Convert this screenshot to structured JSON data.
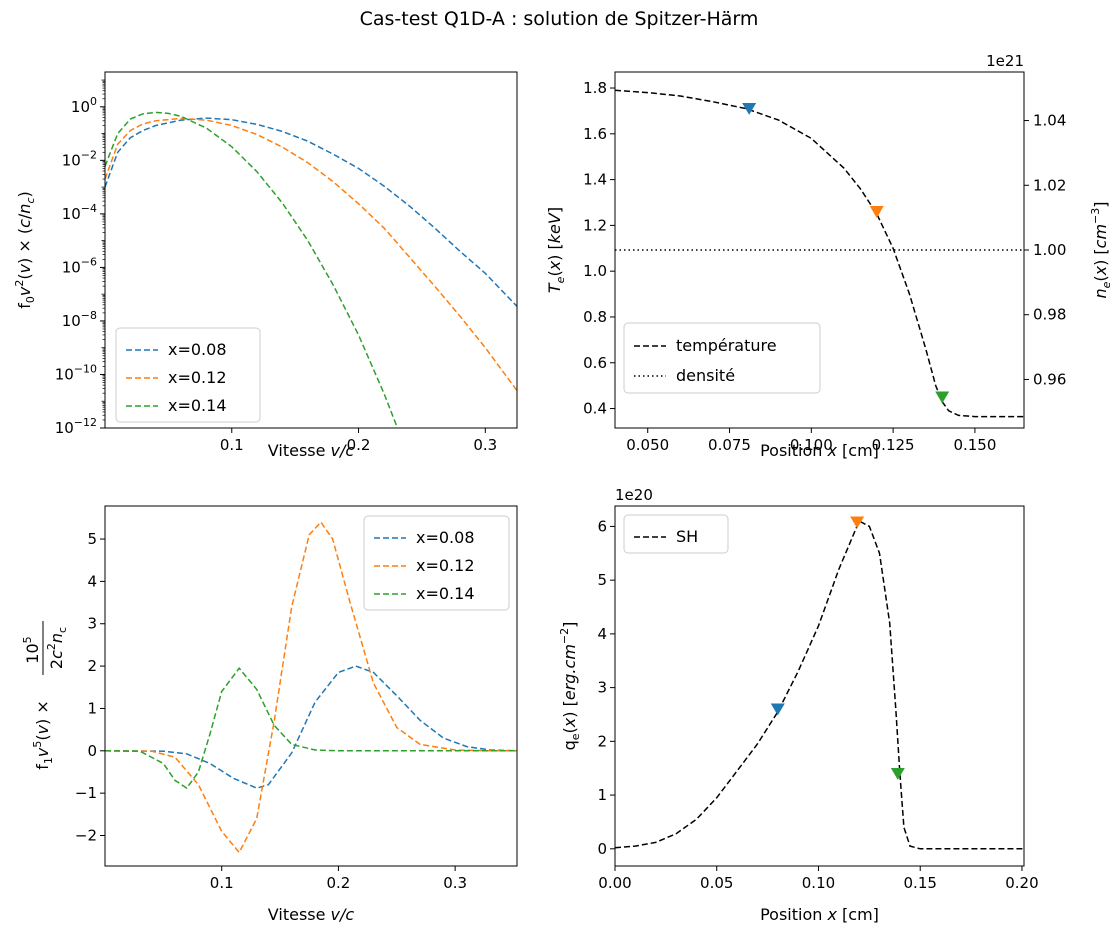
{
  "title": "Cas-test Q1D-A : solution de Spitzer-Härm",
  "colors": {
    "blue": "#1f77b4",
    "orange": "#ff7f0e",
    "green": "#2ca02c",
    "black": "#000000"
  },
  "chart_data": [
    {
      "id": "f0",
      "type": "line",
      "xlabel": "Vitesse v/c",
      "ylabel": "f0 v²(v) × (c/nc)",
      "yscale": "log",
      "xlim": [
        0.0,
        0.325
      ],
      "ylim": [
        1e-12,
        20
      ],
      "xticks": [
        {
          "v": 0.1,
          "label": "0.1"
        },
        {
          "v": 0.2,
          "label": "0.2"
        },
        {
          "v": 0.3,
          "label": "0.3"
        }
      ],
      "yticks": [
        {
          "v": -12,
          "label": "10",
          "exp": "−12"
        },
        {
          "v": -10,
          "label": "10",
          "exp": "−10"
        },
        {
          "v": -8,
          "label": "10",
          "exp": "−8"
        },
        {
          "v": -6,
          "label": "10",
          "exp": "−6"
        },
        {
          "v": -4,
          "label": "10",
          "exp": "−4"
        },
        {
          "v": -2,
          "label": "10",
          "exp": "−2"
        },
        {
          "v": 0,
          "label": "10",
          "exp": "0"
        }
      ],
      "legend": "lower-left",
      "series": [
        {
          "name": "x=0.08",
          "color": "#1f77b4",
          "dash": "dashed",
          "x": [
            0.0,
            0.01,
            0.02,
            0.03,
            0.04,
            0.06,
            0.08,
            0.1,
            0.12,
            0.14,
            0.16,
            0.18,
            0.2,
            0.22,
            0.24,
            0.26,
            0.28,
            0.3,
            0.325
          ],
          "y": [
            0.001,
            0.02,
            0.07,
            0.13,
            0.2,
            0.32,
            0.38,
            0.33,
            0.22,
            0.12,
            0.052,
            0.017,
            0.005,
            0.0011,
            0.0002,
            3e-05,
            4e-06,
            6e-07,
            3.5e-08
          ]
        },
        {
          "name": "x=0.12",
          "color": "#ff7f0e",
          "dash": "dashed",
          "x": [
            0.0,
            0.01,
            0.02,
            0.03,
            0.04,
            0.06,
            0.08,
            0.1,
            0.12,
            0.14,
            0.16,
            0.18,
            0.2,
            0.22,
            0.24,
            0.26,
            0.28,
            0.3,
            0.325
          ],
          "y": [
            0.002,
            0.04,
            0.13,
            0.23,
            0.3,
            0.37,
            0.32,
            0.2,
            0.092,
            0.031,
            0.0082,
            0.0016,
            0.00024,
            3e-05,
            2.5e-06,
            2e-07,
            1.5e-08,
            1e-09,
            2.5e-11
          ]
        },
        {
          "name": "x=0.14",
          "color": "#2ca02c",
          "dash": "dashed",
          "x": [
            0.0,
            0.01,
            0.02,
            0.03,
            0.04,
            0.05,
            0.06,
            0.08,
            0.1,
            0.12,
            0.14,
            0.16,
            0.18,
            0.2,
            0.22,
            0.235
          ],
          "y": [
            0.006,
            0.1,
            0.35,
            0.55,
            0.62,
            0.57,
            0.44,
            0.16,
            0.032,
            0.0037,
            0.00025,
            1e-05,
            2.2e-07,
            3e-09,
            2e-11,
            3e-13
          ]
        }
      ]
    },
    {
      "id": "te",
      "type": "line",
      "xlabel": "Position x [cm]",
      "ylabel": "Te(x) [keV]",
      "ylabel2": "ne(x) [cm⁻³]",
      "offset_label": "1e21",
      "xlim": [
        0.04,
        0.165
      ],
      "ylim": [
        0.315,
        1.87
      ],
      "ylim2": [
        0.945,
        1.055
      ],
      "xticks": [
        {
          "v": 0.05,
          "label": "0.050"
        },
        {
          "v": 0.075,
          "label": "0.075"
        },
        {
          "v": 0.1,
          "label": "0.100"
        },
        {
          "v": 0.125,
          "label": "0.125"
        },
        {
          "v": 0.15,
          "label": "0.150"
        }
      ],
      "yticks": [
        {
          "v": 0.4,
          "label": "0.4"
        },
        {
          "v": 0.6,
          "label": "0.6"
        },
        {
          "v": 0.8,
          "label": "0.8"
        },
        {
          "v": 1.0,
          "label": "1.0"
        },
        {
          "v": 1.2,
          "label": "1.2"
        },
        {
          "v": 1.4,
          "label": "1.4"
        },
        {
          "v": 1.6,
          "label": "1.6"
        },
        {
          "v": 1.8,
          "label": "1.8"
        }
      ],
      "yticks2": [
        {
          "v": 0.96,
          "label": "0.96"
        },
        {
          "v": 0.98,
          "label": "0.98"
        },
        {
          "v": 1.0,
          "label": "1.00"
        },
        {
          "v": 1.02,
          "label": "1.02"
        },
        {
          "v": 1.04,
          "label": "1.04"
        }
      ],
      "legend": "lower-left",
      "series": [
        {
          "name": "température",
          "color": "#000000",
          "dash": "dashed",
          "axis": "left",
          "x": [
            0.04,
            0.05,
            0.06,
            0.07,
            0.08,
            0.09,
            0.1,
            0.11,
            0.115,
            0.12,
            0.125,
            0.13,
            0.135,
            0.138,
            0.14,
            0.142,
            0.145,
            0.15,
            0.155,
            0.16,
            0.165
          ],
          "y": [
            1.79,
            1.78,
            1.765,
            1.74,
            1.71,
            1.66,
            1.58,
            1.45,
            1.36,
            1.25,
            1.1,
            0.9,
            0.66,
            0.5,
            0.43,
            0.39,
            0.37,
            0.365,
            0.365,
            0.365,
            0.365
          ]
        },
        {
          "name": "densité",
          "color": "#000000",
          "dash": "dotted",
          "axis": "right",
          "x": [
            0.04,
            0.165
          ],
          "y": [
            1.0,
            1.0
          ]
        }
      ],
      "markers": [
        {
          "x": 0.081,
          "y": 1.71,
          "color": "#1f77b4"
        },
        {
          "x": 0.12,
          "y": 1.26,
          "color": "#ff7f0e"
        },
        {
          "x": 0.14,
          "y": 0.45,
          "color": "#2ca02c"
        }
      ]
    },
    {
      "id": "f1",
      "type": "line",
      "xlabel": "Vitesse v/c",
      "ylabel": "f1 v⁵(v) × 10⁵/(2c²nc)",
      "xlim": [
        0.0,
        0.353
      ],
      "ylim": [
        -2.72,
        5.78
      ],
      "xticks": [
        {
          "v": 0.1,
          "label": "0.1"
        },
        {
          "v": 0.2,
          "label": "0.2"
        },
        {
          "v": 0.3,
          "label": "0.3"
        }
      ],
      "yticks": [
        {
          "v": -2,
          "label": "−2"
        },
        {
          "v": -1,
          "label": "−1"
        },
        {
          "v": 0,
          "label": "0"
        },
        {
          "v": 1,
          "label": "1"
        },
        {
          "v": 2,
          "label": "2"
        },
        {
          "v": 3,
          "label": "3"
        },
        {
          "v": 4,
          "label": "4"
        },
        {
          "v": 5,
          "label": "5"
        }
      ],
      "legend": "upper-right",
      "series": [
        {
          "name": "x=0.08",
          "color": "#1f77b4",
          "dash": "dashed",
          "x": [
            0.0,
            0.05,
            0.07,
            0.09,
            0.11,
            0.13,
            0.14,
            0.16,
            0.18,
            0.2,
            0.215,
            0.23,
            0.25,
            0.27,
            0.29,
            0.31,
            0.33,
            0.353
          ],
          "y": [
            0,
            -0.01,
            -0.07,
            -0.3,
            -0.65,
            -0.88,
            -0.8,
            -0.05,
            1.15,
            1.85,
            2.0,
            1.85,
            1.3,
            0.72,
            0.3,
            0.1,
            0.02,
            0.0
          ]
        },
        {
          "name": "x=0.12",
          "color": "#ff7f0e",
          "dash": "dashed",
          "x": [
            0.0,
            0.04,
            0.06,
            0.08,
            0.1,
            0.115,
            0.13,
            0.145,
            0.16,
            0.175,
            0.185,
            0.195,
            0.21,
            0.23,
            0.25,
            0.27,
            0.3,
            0.33,
            0.353
          ],
          "y": [
            0,
            -0.01,
            -0.15,
            -0.8,
            -1.9,
            -2.4,
            -1.6,
            0.7,
            3.4,
            5.1,
            5.4,
            5.0,
            3.5,
            1.6,
            0.55,
            0.15,
            0.02,
            0.0,
            0.0
          ]
        },
        {
          "name": "x=0.14",
          "color": "#2ca02c",
          "dash": "dashed",
          "x": [
            0.0,
            0.03,
            0.05,
            0.06,
            0.07,
            0.08,
            0.09,
            0.1,
            0.115,
            0.13,
            0.145,
            0.16,
            0.18,
            0.2,
            0.25,
            0.353
          ],
          "y": [
            0,
            -0.01,
            -0.3,
            -0.7,
            -0.88,
            -0.5,
            0.4,
            1.4,
            1.95,
            1.45,
            0.6,
            0.15,
            0.02,
            0.0,
            0.0,
            0.0
          ]
        }
      ]
    },
    {
      "id": "qe",
      "type": "line",
      "xlabel": "Position x [cm]",
      "ylabel": "qe(x) [erg.cm⁻²]",
      "offset_label": "1e20",
      "xlim": [
        0.0,
        0.201
      ],
      "ylim": [
        -0.32,
        6.38
      ],
      "xticks": [
        {
          "v": 0.0,
          "label": "0.00"
        },
        {
          "v": 0.05,
          "label": "0.05"
        },
        {
          "v": 0.1,
          "label": "0.10"
        },
        {
          "v": 0.15,
          "label": "0.15"
        },
        {
          "v": 0.2,
          "label": "0.20"
        }
      ],
      "yticks": [
        {
          "v": 0,
          "label": "0"
        },
        {
          "v": 1,
          "label": "1"
        },
        {
          "v": 2,
          "label": "2"
        },
        {
          "v": 3,
          "label": "3"
        },
        {
          "v": 4,
          "label": "4"
        },
        {
          "v": 5,
          "label": "5"
        },
        {
          "v": 6,
          "label": "6"
        }
      ],
      "legend": "upper-left",
      "series": [
        {
          "name": "SH",
          "color": "#000000",
          "dash": "dashed",
          "x": [
            0.0,
            0.01,
            0.02,
            0.03,
            0.04,
            0.05,
            0.06,
            0.07,
            0.08,
            0.09,
            0.1,
            0.11,
            0.12,
            0.125,
            0.13,
            0.135,
            0.138,
            0.14,
            0.142,
            0.145,
            0.15,
            0.16,
            0.201
          ],
          "y": [
            0.02,
            0.05,
            0.12,
            0.28,
            0.55,
            0.95,
            1.45,
            1.95,
            2.55,
            3.3,
            4.15,
            5.2,
            6.1,
            6.0,
            5.5,
            4.2,
            2.6,
            1.4,
            0.4,
            0.05,
            0.0,
            0.0,
            0.0
          ]
        }
      ],
      "markers": [
        {
          "x": 0.08,
          "y": 2.6,
          "color": "#1f77b4"
        },
        {
          "x": 0.119,
          "y": 6.08,
          "color": "#ff7f0e"
        },
        {
          "x": 0.139,
          "y": 1.4,
          "color": "#2ca02c"
        }
      ]
    }
  ]
}
